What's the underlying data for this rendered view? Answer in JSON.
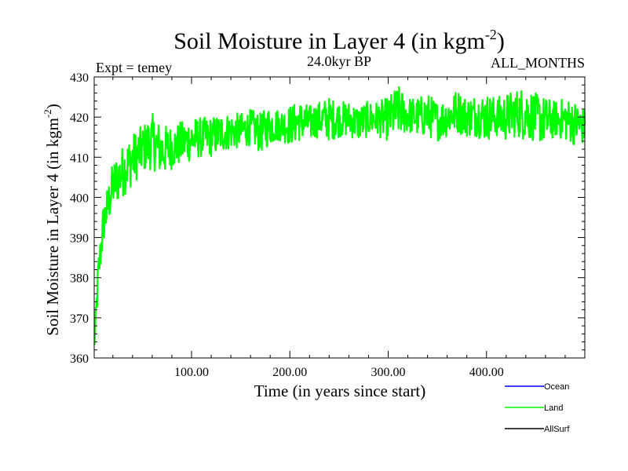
{
  "chart_data": {
    "type": "line",
    "title_main": "Soil Moisture in Layer 4 (in kgm",
    "title_sup": "-2",
    "title_close": ")",
    "left_label": "Expt = temey",
    "center_label": "24.0kyr BP",
    "right_label": "ALL_MONTHS",
    "xlabel": "Time (in years since start)",
    "ylabel_main": "Soil Moisture in Layer 4 (in kgm",
    "ylabel_sup": "-2",
    "ylabel_close": ")",
    "xlim": [
      1,
      500
    ],
    "ylim": [
      360,
      430
    ],
    "x_ticks": [
      100,
      200,
      300,
      400
    ],
    "x_tick_labels": [
      "100.00",
      "200.00",
      "300.00",
      "400.00"
    ],
    "y_ticks": [
      360,
      370,
      380,
      390,
      400,
      410,
      420,
      430
    ],
    "y_tick_labels": [
      "360",
      "370",
      "380",
      "390",
      "400",
      "410",
      "420",
      "430"
    ],
    "legend": [
      {
        "name": "Ocean",
        "color": "#0000ff"
      },
      {
        "name": "Land",
        "color": "#00ff00"
      },
      {
        "name": "AllSurf",
        "color": "#000000"
      }
    ],
    "series": [
      {
        "name": "Land",
        "color": "#00ff00",
        "description": "annual series, 500 years; estimated envelope (low/high) sampled every 10 years",
        "x": [
          1,
          5,
          10,
          20,
          30,
          40,
          50,
          60,
          70,
          80,
          90,
          100,
          110,
          120,
          130,
          140,
          150,
          160,
          170,
          180,
          190,
          200,
          210,
          220,
          230,
          240,
          250,
          260,
          270,
          280,
          290,
          300,
          310,
          320,
          330,
          340,
          350,
          360,
          370,
          380,
          390,
          400,
          410,
          420,
          430,
          440,
          450,
          460,
          470,
          480,
          490,
          500
        ],
        "low": [
          360,
          375,
          388,
          397,
          400,
          403,
          406,
          407,
          405,
          407,
          408,
          409,
          410,
          410,
          411,
          412,
          412,
          413,
          411,
          413,
          414,
          413,
          414,
          414,
          415,
          414,
          415,
          415,
          414,
          415,
          415,
          414,
          415,
          416,
          415,
          415,
          414,
          415,
          416,
          415,
          415,
          414,
          415,
          414,
          415,
          414,
          414,
          413,
          415,
          414,
          413,
          413
        ],
        "high": [
          365,
          385,
          398,
          409,
          413,
          416,
          418,
          421,
          418,
          418,
          419,
          420,
          420,
          420,
          421,
          421,
          421,
          422,
          421,
          423,
          422,
          423,
          424,
          423,
          424,
          425,
          424,
          424,
          423,
          424,
          424,
          425,
          428,
          425,
          425,
          426,
          424,
          425,
          427,
          425,
          426,
          426,
          425,
          426,
          427,
          428,
          426,
          425,
          424,
          425,
          424,
          422
        ]
      }
    ]
  }
}
